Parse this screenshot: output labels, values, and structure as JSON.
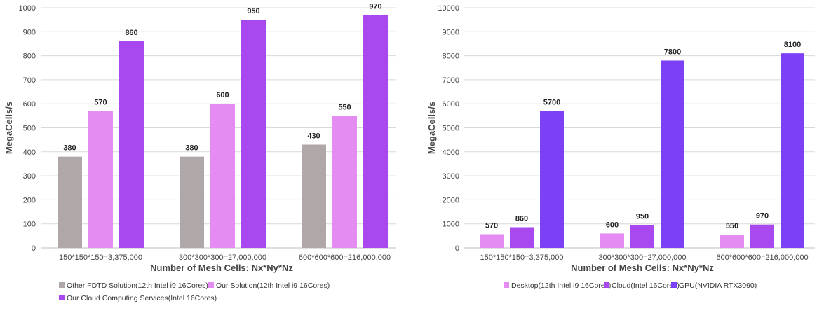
{
  "colors": {
    "gray": "#b0a8a8",
    "pink": "#e58cf2",
    "purple": "#aa48ef",
    "violet": "#7c40f7",
    "grid": "#d9d9d9",
    "axis": "#bfbfbf"
  },
  "chart_data": [
    {
      "type": "bar",
      "title": "",
      "xlabel": "Number of Mesh Cells: Nx*Ny*Nz",
      "ylabel": "MegaCells/s",
      "ylim": [
        0,
        1000
      ],
      "yticks": [
        0,
        100,
        200,
        300,
        400,
        500,
        600,
        700,
        800,
        900,
        1000
      ],
      "grid": true,
      "legend_position": "bottom",
      "categories": [
        "150*150*150=3,375,000",
        "300*300*300=27,000,000",
        "600*600*600=216,000,000"
      ],
      "series": [
        {
          "name": "Other FDTD Solution(12th Intel i9 16Cores)",
          "color_key": "gray",
          "values": [
            380,
            380,
            430
          ]
        },
        {
          "name": "Our Solution(12th Intel i9 16Cores)",
          "color_key": "pink",
          "values": [
            570,
            600,
            550
          ]
        },
        {
          "name": "Our Cloud Computing Services(Intel 16Cores)",
          "color_key": "purple",
          "values": [
            860,
            950,
            970
          ]
        }
      ]
    },
    {
      "type": "bar",
      "title": "",
      "xlabel": "Number of Mesh Cells: Nx*Ny*Nz",
      "ylabel": "MegaCells/s",
      "ylim": [
        0,
        10000
      ],
      "yticks": [
        0,
        1000,
        2000,
        3000,
        4000,
        5000,
        6000,
        7000,
        8000,
        9000,
        10000
      ],
      "grid": true,
      "legend_position": "bottom",
      "categories": [
        "150*150*150=3,375,000",
        "300*300*300=27,000,000",
        "600*600*600=216,000,000"
      ],
      "series": [
        {
          "name": "Desktop(12th Intel i9 16Cores)",
          "color_key": "pink",
          "values": [
            570,
            600,
            550
          ]
        },
        {
          "name": "Cloud(Intel 16Cores)",
          "color_key": "purple",
          "values": [
            860,
            950,
            970
          ]
        },
        {
          "name": "GPU(NVIDIA RTX3090)",
          "color_key": "violet",
          "values": [
            5700,
            7800,
            8100
          ]
        }
      ]
    }
  ]
}
